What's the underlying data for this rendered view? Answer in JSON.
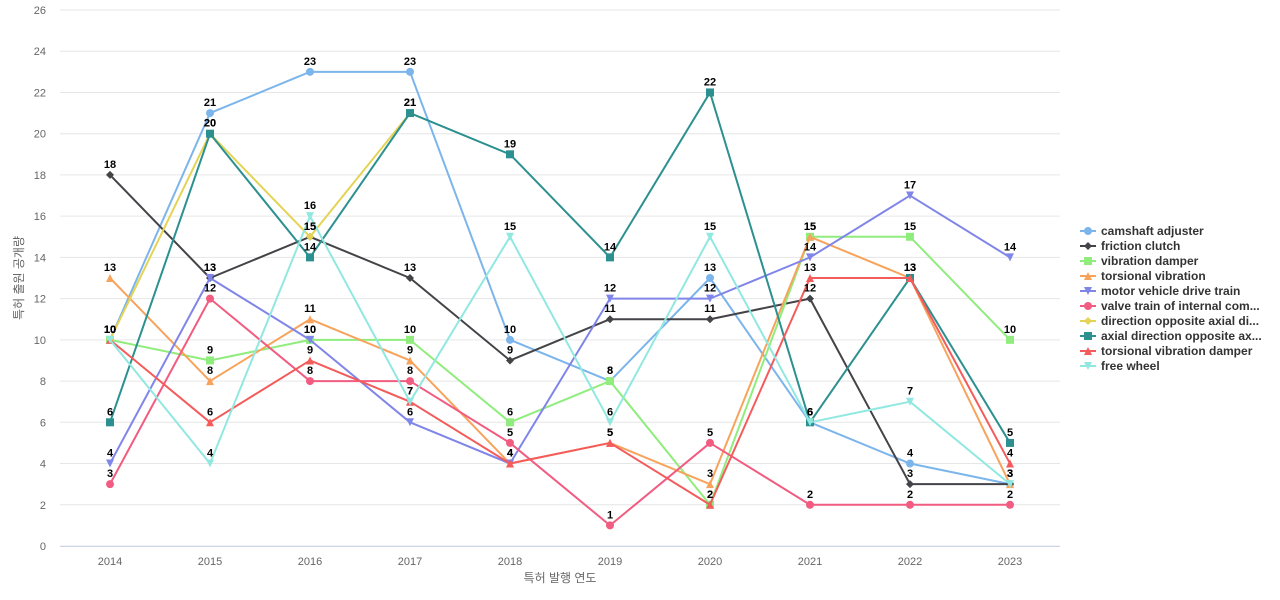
{
  "chart_data": {
    "type": "line",
    "xlabel": "특허 발행 연도",
    "ylabel": "특허 출원 공개량",
    "ylim": [
      0,
      26
    ],
    "yticks": [
      0,
      2,
      4,
      6,
      8,
      10,
      12,
      14,
      16,
      18,
      20,
      22,
      24,
      26
    ],
    "grid": true,
    "legend_position": "right",
    "categories": [
      "2014",
      "2015",
      "2016",
      "2017",
      "2018",
      "2019",
      "2020",
      "2021",
      "2022",
      "2023"
    ],
    "series": [
      {
        "name": "camshaft adjuster",
        "color": "#7cb5ec",
        "marker": "circle",
        "values": [
          10,
          21,
          23,
          23,
          10,
          8,
          13,
          6,
          4,
          3
        ]
      },
      {
        "name": "friction clutch",
        "color": "#434348",
        "marker": "diamond",
        "values": [
          18,
          13,
          15,
          13,
          9,
          11,
          11,
          12,
          3,
          3
        ]
      },
      {
        "name": "vibration damper",
        "color": "#90ed7d",
        "marker": "square",
        "values": [
          10,
          9,
          10,
          10,
          6,
          8,
          2,
          15,
          15,
          10
        ]
      },
      {
        "name": "torsional vibration",
        "color": "#f7a35c",
        "marker": "triangle",
        "values": [
          13,
          8,
          11,
          9,
          4,
          5,
          3,
          15,
          13,
          3
        ]
      },
      {
        "name": "motor vehicle drive train",
        "color": "#8085e9",
        "marker": "triangle-down",
        "values": [
          4,
          13,
          10,
          6,
          4,
          12,
          12,
          14,
          17,
          14
        ]
      },
      {
        "name": "valve train of internal com...",
        "color": "#f15c80",
        "marker": "circle",
        "values": [
          3,
          12,
          8,
          8,
          5,
          1,
          5,
          2,
          2,
          2
        ]
      },
      {
        "name": "direction opposite axial di...",
        "color": "#e4d354",
        "marker": "diamond",
        "values": [
          10,
          20,
          15,
          21,
          null,
          null,
          null,
          null,
          null,
          null
        ]
      },
      {
        "name": "axial direction opposite ax...",
        "color": "#2b908f",
        "marker": "square",
        "values": [
          6,
          20,
          14,
          21,
          19,
          14,
          22,
          6,
          13,
          5
        ]
      },
      {
        "name": "torsional vibration damper",
        "color": "#f45b5b",
        "marker": "triangle",
        "values": [
          10,
          6,
          9,
          7,
          4,
          5,
          2,
          13,
          13,
          4
        ]
      },
      {
        "name": "free wheel",
        "color": "#91e8e1",
        "marker": "triangle-down",
        "values": [
          10,
          4,
          16,
          7,
          15,
          6,
          15,
          6,
          7,
          3
        ]
      }
    ]
  }
}
